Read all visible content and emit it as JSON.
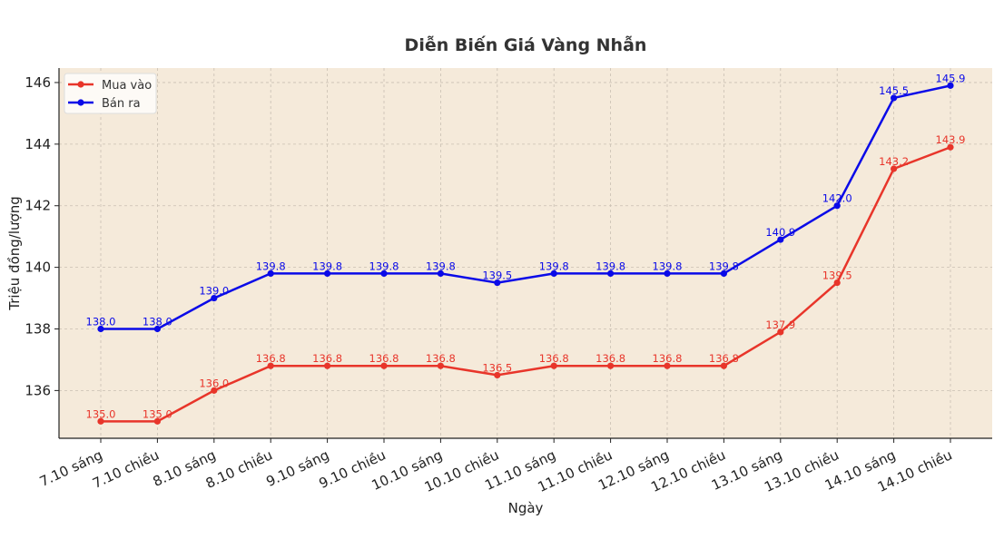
{
  "chart_data": {
    "type": "line",
    "title": "Diễn Biến Giá Vàng Nhẫn",
    "xlabel": "Ngày",
    "ylabel": "Triệu đồng/lượng",
    "categories": [
      "7.10 sáng",
      "7.10 chiều",
      "8.10 sáng",
      "8.10 chiều",
      "9.10 sáng",
      "9.10 chiều",
      "10.10 sáng",
      "10.10 chiều",
      "11.10 sáng",
      "11.10 chiều",
      "12.10 sáng",
      "12.10 chiều",
      "13.10 sáng",
      "13.10 chiều",
      "14.10 sáng",
      "14.10 chiều"
    ],
    "series": [
      {
        "name": "Mua vào",
        "color": "#e8352a",
        "values": [
          135.0,
          135.0,
          136.0,
          136.8,
          136.8,
          136.8,
          136.8,
          136.5,
          136.8,
          136.8,
          136.8,
          136.8,
          137.9,
          139.5,
          143.2,
          143.9
        ]
      },
      {
        "name": "Bán ra",
        "color": "#0a0ae8",
        "values": [
          138.0,
          138.0,
          139.0,
          139.8,
          139.8,
          139.8,
          139.8,
          139.5,
          139.8,
          139.8,
          139.8,
          139.8,
          140.9,
          142.0,
          145.5,
          145.9
        ]
      }
    ],
    "yticks": [
      136,
      138,
      140,
      142,
      144,
      146
    ],
    "ylim": [
      134.45,
      146.47
    ],
    "grid": true,
    "legend": "top-left",
    "background": "#f5eada"
  }
}
